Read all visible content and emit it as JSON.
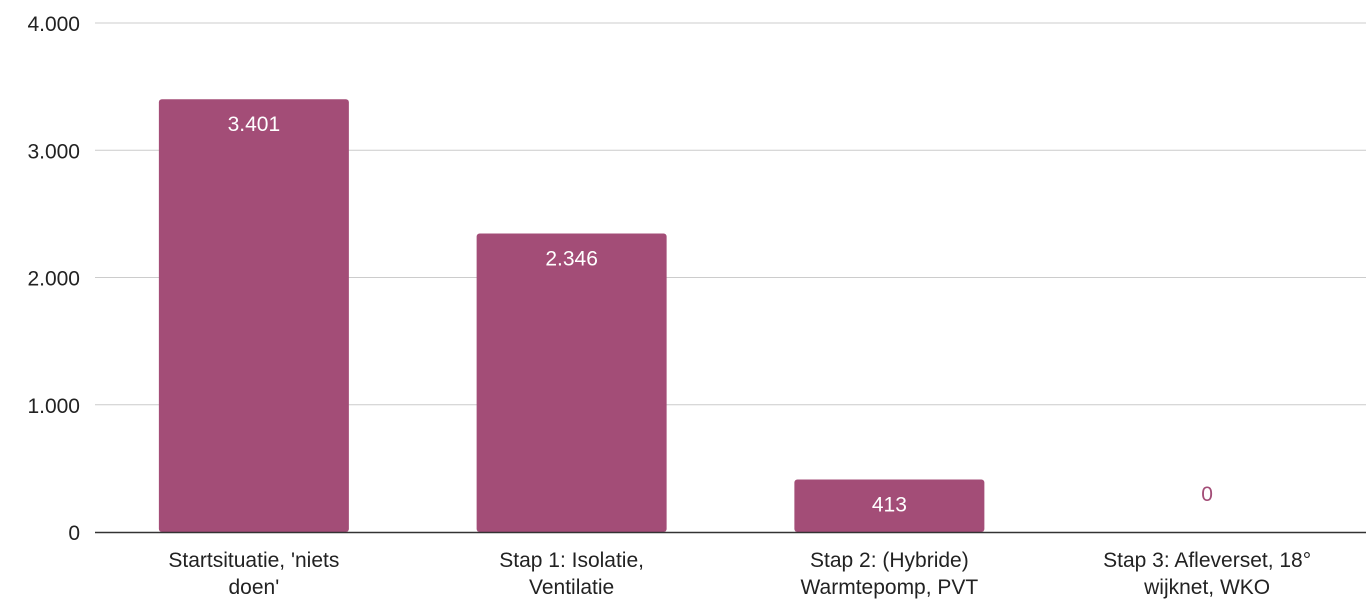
{
  "chart_data": {
    "type": "bar",
    "categories": [
      [
        "Startsituatie, 'niets",
        "doen'"
      ],
      [
        "Stap 1: Isolatie,",
        "Ventilatie"
      ],
      [
        "Stap 2: (Hybride)",
        "Warmtepomp, PVT"
      ],
      [
        "Stap 3: Afleverset, 18°",
        "wijknet, WKO"
      ]
    ],
    "values": [
      3401,
      2346,
      413,
      0
    ],
    "data_labels": [
      "3.401",
      "2.346",
      "413",
      "0"
    ],
    "yticks": [
      0,
      1000,
      2000,
      3000,
      4000
    ],
    "ytick_labels": [
      "0",
      "1.000",
      "2.000",
      "3.000",
      "4.000"
    ],
    "ylim": [
      0,
      4000
    ],
    "title": "",
    "xlabel": "",
    "ylabel": "",
    "grid": true,
    "legend": "none",
    "colors": {
      "bar": "#a34d77",
      "bar_label_inside": "#ffffff",
      "bar_label_outside": "#a34d77",
      "grid": "#cccccc",
      "axis": "#333333",
      "text": "#222222"
    }
  }
}
